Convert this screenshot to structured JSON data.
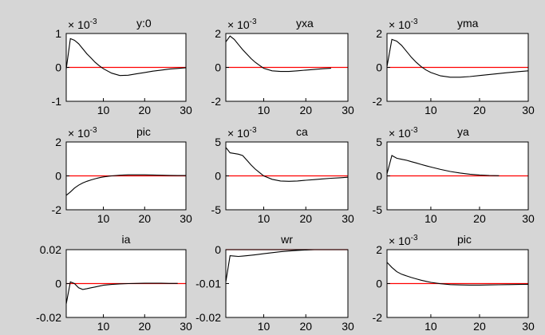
{
  "figure": {
    "background": "#d6d6d6",
    "axes_background": "#ffffff",
    "line_color": "#000000",
    "zero_line_color": "#ff0000"
  },
  "chart_data": [
    {
      "type": "line",
      "title": "y:0",
      "multiplier": "× 10",
      "exponent": "-3",
      "xlim": [
        1,
        30
      ],
      "ylim": [
        -1,
        1
      ],
      "xticks": [
        10,
        20,
        30
      ],
      "yticks": [
        -1,
        0,
        1
      ],
      "ytick_labels": [
        "-1",
        "0",
        "1"
      ],
      "x": [
        1,
        2,
        3,
        4,
        5,
        6,
        7,
        8,
        9,
        10,
        12,
        14,
        16,
        18,
        20,
        22,
        24,
        26,
        28,
        30
      ],
      "values": [
        -0.05,
        0.85,
        0.8,
        0.7,
        0.55,
        0.4,
        0.28,
        0.15,
        0.05,
        -0.04,
        -0.17,
        -0.24,
        -0.23,
        -0.19,
        -0.15,
        -0.11,
        -0.08,
        -0.05,
        -0.03,
        -0.01
      ]
    },
    {
      "type": "line",
      "title": "yxa",
      "multiplier": "× 10",
      "exponent": "-3",
      "xlim": [
        1,
        30
      ],
      "ylim": [
        -2,
        2
      ],
      "xticks": [
        10,
        20,
        30
      ],
      "yticks": [
        -2,
        0,
        2
      ],
      "ytick_labels": [
        "-2",
        "0",
        "2"
      ],
      "x": [
        1,
        2,
        3,
        4,
        5,
        6,
        7,
        8,
        9,
        10,
        12,
        14,
        16,
        18,
        20,
        22,
        24,
        26
      ],
      "values": [
        1.5,
        1.85,
        1.65,
        1.35,
        1.05,
        0.78,
        0.52,
        0.3,
        0.12,
        -0.05,
        -0.2,
        -0.24,
        -0.24,
        -0.2,
        -0.16,
        -0.12,
        -0.08,
        -0.05
      ]
    },
    {
      "type": "line",
      "title": "yma",
      "multiplier": "× 10",
      "exponent": "-3",
      "xlim": [
        1,
        30
      ],
      "ylim": [
        -2,
        2
      ],
      "xticks": [
        10,
        20,
        30
      ],
      "yticks": [
        -2,
        0,
        2
      ],
      "ytick_labels": [
        "-2",
        "0",
        "2"
      ],
      "x": [
        1,
        2,
        3,
        4,
        5,
        6,
        7,
        8,
        9,
        10,
        12,
        14,
        16,
        18,
        20,
        22,
        24,
        26,
        28,
        30
      ],
      "values": [
        0.05,
        1.65,
        1.55,
        1.3,
        0.95,
        0.6,
        0.3,
        0.05,
        -0.15,
        -0.3,
        -0.5,
        -0.58,
        -0.58,
        -0.54,
        -0.48,
        -0.42,
        -0.36,
        -0.3,
        -0.25,
        -0.2
      ]
    },
    {
      "type": "line",
      "title": "pic",
      "multiplier": "× 10",
      "exponent": "-3",
      "xlim": [
        1,
        30
      ],
      "ylim": [
        -2,
        2
      ],
      "xticks": [
        10,
        20,
        30
      ],
      "yticks": [
        -2,
        0,
        2
      ],
      "ytick_labels": [
        "-2",
        "0",
        "2"
      ],
      "x": [
        1,
        2,
        3,
        4,
        5,
        6,
        7,
        8,
        9,
        10,
        12,
        14,
        16,
        18,
        20,
        22,
        24,
        26,
        28,
        30
      ],
      "values": [
        -1.15,
        -0.95,
        -0.72,
        -0.55,
        -0.42,
        -0.32,
        -0.24,
        -0.17,
        -0.11,
        -0.06,
        0.0,
        0.04,
        0.06,
        0.06,
        0.06,
        0.05,
        0.04,
        0.03,
        0.02,
        0.02
      ]
    },
    {
      "type": "line",
      "title": "ca",
      "multiplier": "× 10",
      "exponent": "-3",
      "xlim": [
        1,
        30
      ],
      "ylim": [
        -5,
        5
      ],
      "xticks": [
        10,
        20,
        30
      ],
      "yticks": [
        -5,
        0,
        5
      ],
      "ytick_labels": [
        "-5",
        "0",
        "5"
      ],
      "x": [
        1,
        2,
        3,
        4,
        5,
        6,
        7,
        8,
        9,
        10,
        12,
        14,
        16,
        18,
        20,
        22,
        24,
        26,
        28,
        30
      ],
      "values": [
        4.2,
        3.4,
        3.3,
        3.2,
        3.0,
        2.3,
        1.6,
        1.0,
        0.5,
        0.0,
        -0.5,
        -0.75,
        -0.8,
        -0.75,
        -0.65,
        -0.55,
        -0.45,
        -0.35,
        -0.28,
        -0.2
      ]
    },
    {
      "type": "line",
      "title": "ya",
      "multiplier": "× 10",
      "exponent": "-3",
      "xlim": [
        1,
        30
      ],
      "ylim": [
        -5,
        5
      ],
      "xticks": [
        10,
        20,
        30
      ],
      "yticks": [
        -5,
        0,
        5
      ],
      "ytick_labels": [
        "-5",
        "0",
        "5"
      ],
      "x": [
        1,
        2,
        3,
        4,
        5,
        6,
        7,
        8,
        9,
        10,
        12,
        14,
        16,
        18,
        20,
        22,
        24
      ],
      "values": [
        0.3,
        3.0,
        2.6,
        2.45,
        2.3,
        2.1,
        1.9,
        1.7,
        1.5,
        1.3,
        0.95,
        0.65,
        0.42,
        0.25,
        0.13,
        0.06,
        0.02
      ]
    },
    {
      "type": "line",
      "title": "ia",
      "multiplier": "",
      "exponent": "",
      "xlim": [
        1,
        30
      ],
      "ylim": [
        -0.02,
        0.02
      ],
      "xticks": [
        10,
        20,
        30
      ],
      "yticks": [
        -0.02,
        0,
        0.02
      ],
      "ytick_labels": [
        "-0.02",
        "0",
        "0.02"
      ],
      "x": [
        1,
        2,
        3,
        4,
        5,
        6,
        7,
        8,
        9,
        10,
        12,
        14,
        16,
        18,
        20,
        22,
        24,
        26,
        28
      ],
      "values": [
        -0.012,
        0.001,
        0.0,
        -0.0025,
        -0.0035,
        -0.003,
        -0.0025,
        -0.002,
        -0.0015,
        -0.001,
        -0.0005,
        -0.0002,
        0.0,
        0.0001,
        0.0002,
        0.0002,
        0.0002,
        0.0001,
        0.0001
      ]
    },
    {
      "type": "line",
      "title": "wr",
      "multiplier": "",
      "exponent": "",
      "xlim": [
        1,
        30
      ],
      "ylim": [
        -0.02,
        0
      ],
      "xticks": [
        10,
        20,
        30
      ],
      "yticks": [
        -0.02,
        -0.01,
        0
      ],
      "ytick_labels": [
        "-0.02",
        "-0.01",
        "0"
      ],
      "x": [
        1,
        2,
        3,
        4,
        5,
        6,
        8,
        10,
        12,
        14,
        16,
        18,
        20,
        22
      ],
      "values": [
        -0.0095,
        -0.0018,
        -0.0019,
        -0.002,
        -0.0019,
        -0.0018,
        -0.0015,
        -0.0012,
        -0.0009,
        -0.0006,
        -0.0004,
        -0.0002,
        -0.0001,
        0.0
      ]
    },
    {
      "type": "line",
      "title": "pic",
      "multiplier": "× 10",
      "exponent": "-3",
      "xlim": [
        1,
        30
      ],
      "ylim": [
        -2,
        2
      ],
      "xticks": [
        10,
        20,
        30
      ],
      "yticks": [
        -2,
        0,
        2
      ],
      "ytick_labels": [
        "-2",
        "0",
        "2"
      ],
      "x": [
        1,
        2,
        3,
        4,
        5,
        6,
        7,
        8,
        9,
        10,
        12,
        14,
        16,
        18,
        20,
        22,
        24,
        26,
        28,
        30
      ],
      "values": [
        1.25,
        0.95,
        0.7,
        0.55,
        0.45,
        0.36,
        0.28,
        0.2,
        0.13,
        0.07,
        -0.01,
        -0.06,
        -0.08,
        -0.09,
        -0.09,
        -0.08,
        -0.07,
        -0.06,
        -0.05,
        -0.04
      ]
    }
  ]
}
